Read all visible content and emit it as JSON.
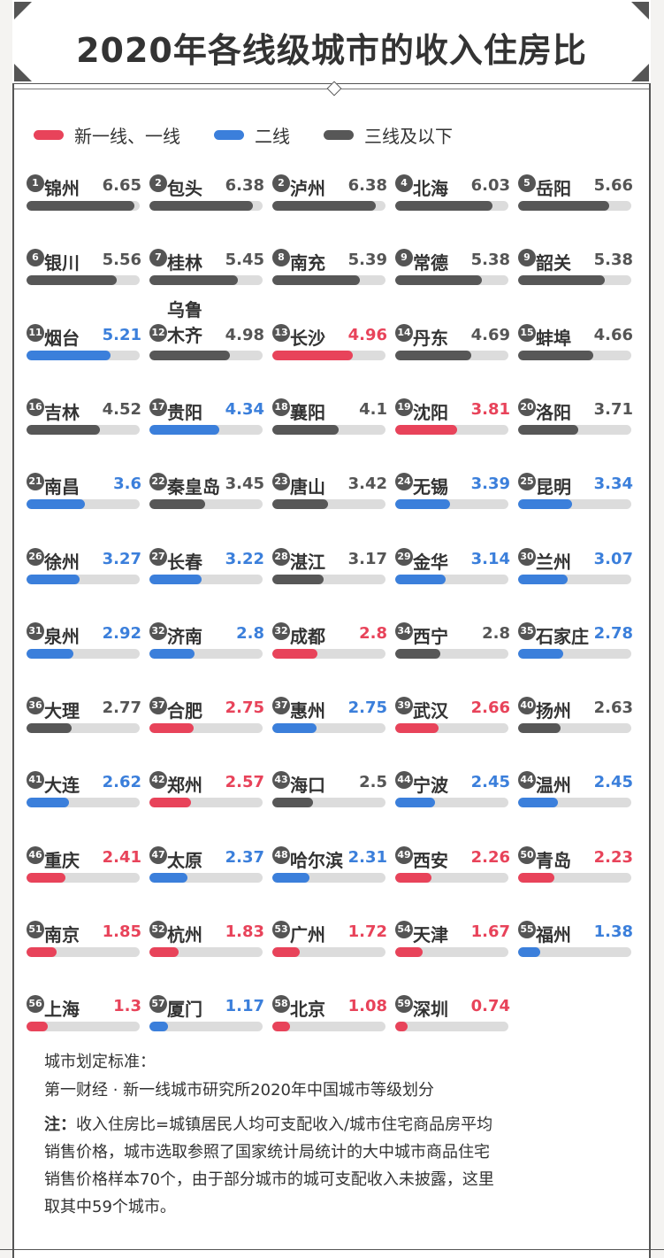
{
  "title": "2020年各线级城市的收入住房比",
  "colors": {
    "tier1": "#e8435a",
    "tier2": "#3b7fdb",
    "tier3": "#575757",
    "track": "#dcdcdc"
  },
  "legend": [
    {
      "label": "新一线、一线",
      "tier": "tier1"
    },
    {
      "label": "二线",
      "tier": "tier2"
    },
    {
      "label": "三线及以下",
      "tier": "tier3"
    }
  ],
  "chart_data": {
    "type": "bar",
    "title": "2020年各线级城市的收入住房比",
    "xlim": [
      0,
      7
    ],
    "items": [
      {
        "rank": "1",
        "city": "锦州",
        "value": 6.65,
        "label": "6.65",
        "tier": "tier3"
      },
      {
        "rank": "2",
        "city": "包头",
        "value": 6.38,
        "label": "6.38",
        "tier": "tier3"
      },
      {
        "rank": "2",
        "city": "泸州",
        "value": 6.38,
        "label": "6.38",
        "tier": "tier3"
      },
      {
        "rank": "4",
        "city": "北海",
        "value": 6.03,
        "label": "6.03",
        "tier": "tier3"
      },
      {
        "rank": "5",
        "city": "岳阳",
        "value": 5.66,
        "label": "5.66",
        "tier": "tier3"
      },
      {
        "rank": "6",
        "city": "银川",
        "value": 5.56,
        "label": "5.56",
        "tier": "tier3"
      },
      {
        "rank": "7",
        "city": "桂林",
        "value": 5.45,
        "label": "5.45",
        "tier": "tier3"
      },
      {
        "rank": "8",
        "city": "南充",
        "value": 5.39,
        "label": "5.39",
        "tier": "tier3"
      },
      {
        "rank": "9",
        "city": "常德",
        "value": 5.38,
        "label": "5.38",
        "tier": "tier3"
      },
      {
        "rank": "9",
        "city": "韶关",
        "value": 5.38,
        "label": "5.38",
        "tier": "tier3"
      },
      {
        "rank": "11",
        "city": "烟台",
        "value": 5.21,
        "label": "5.21",
        "tier": "tier2"
      },
      {
        "rank": "12",
        "city": "乌鲁木齐",
        "value": 4.98,
        "label": "4.98",
        "tier": "tier3",
        "two_line": true
      },
      {
        "rank": "13",
        "city": "长沙",
        "value": 4.96,
        "label": "4.96",
        "tier": "tier1"
      },
      {
        "rank": "14",
        "city": "丹东",
        "value": 4.69,
        "label": "4.69",
        "tier": "tier3"
      },
      {
        "rank": "15",
        "city": "蚌埠",
        "value": 4.66,
        "label": "4.66",
        "tier": "tier3"
      },
      {
        "rank": "16",
        "city": "吉林",
        "value": 4.52,
        "label": "4.52",
        "tier": "tier3"
      },
      {
        "rank": "17",
        "city": "贵阳",
        "value": 4.34,
        "label": "4.34",
        "tier": "tier2"
      },
      {
        "rank": "18",
        "city": "襄阳",
        "value": 4.1,
        "label": "4.1",
        "tier": "tier3"
      },
      {
        "rank": "19",
        "city": "沈阳",
        "value": 3.81,
        "label": "3.81",
        "tier": "tier1"
      },
      {
        "rank": "20",
        "city": "洛阳",
        "value": 3.71,
        "label": "3.71",
        "tier": "tier3"
      },
      {
        "rank": "21",
        "city": "南昌",
        "value": 3.6,
        "label": "3.6",
        "tier": "tier2"
      },
      {
        "rank": "22",
        "city": "秦皇岛",
        "value": 3.45,
        "label": "3.45",
        "tier": "tier3"
      },
      {
        "rank": "23",
        "city": "唐山",
        "value": 3.42,
        "label": "3.42",
        "tier": "tier3"
      },
      {
        "rank": "24",
        "city": "无锡",
        "value": 3.39,
        "label": "3.39",
        "tier": "tier2"
      },
      {
        "rank": "25",
        "city": "昆明",
        "value": 3.34,
        "label": "3.34",
        "tier": "tier2"
      },
      {
        "rank": "26",
        "city": "徐州",
        "value": 3.27,
        "label": "3.27",
        "tier": "tier2"
      },
      {
        "rank": "27",
        "city": "长春",
        "value": 3.22,
        "label": "3.22",
        "tier": "tier2"
      },
      {
        "rank": "28",
        "city": "湛江",
        "value": 3.17,
        "label": "3.17",
        "tier": "tier3"
      },
      {
        "rank": "29",
        "city": "金华",
        "value": 3.14,
        "label": "3.14",
        "tier": "tier2"
      },
      {
        "rank": "30",
        "city": "兰州",
        "value": 3.07,
        "label": "3.07",
        "tier": "tier2"
      },
      {
        "rank": "31",
        "city": "泉州",
        "value": 2.92,
        "label": "2.92",
        "tier": "tier2"
      },
      {
        "rank": "32",
        "city": "济南",
        "value": 2.8,
        "label": "2.8",
        "tier": "tier2"
      },
      {
        "rank": "32",
        "city": "成都",
        "value": 2.8,
        "label": "2.8",
        "tier": "tier1"
      },
      {
        "rank": "34",
        "city": "西宁",
        "value": 2.8,
        "label": "2.8",
        "tier": "tier3"
      },
      {
        "rank": "35",
        "city": "石家庄",
        "value": 2.78,
        "label": "2.78",
        "tier": "tier2"
      },
      {
        "rank": "36",
        "city": "大理",
        "value": 2.77,
        "label": "2.77",
        "tier": "tier3"
      },
      {
        "rank": "37",
        "city": "合肥",
        "value": 2.75,
        "label": "2.75",
        "tier": "tier1"
      },
      {
        "rank": "37",
        "city": "惠州",
        "value": 2.75,
        "label": "2.75",
        "tier": "tier2"
      },
      {
        "rank": "39",
        "city": "武汉",
        "value": 2.66,
        "label": "2.66",
        "tier": "tier1"
      },
      {
        "rank": "40",
        "city": "扬州",
        "value": 2.63,
        "label": "2.63",
        "tier": "tier3"
      },
      {
        "rank": "41",
        "city": "大连",
        "value": 2.62,
        "label": "2.62",
        "tier": "tier2"
      },
      {
        "rank": "42",
        "city": "郑州",
        "value": 2.57,
        "label": "2.57",
        "tier": "tier1"
      },
      {
        "rank": "43",
        "city": "海口",
        "value": 2.5,
        "label": "2.5",
        "tier": "tier3"
      },
      {
        "rank": "44",
        "city": "宁波",
        "value": 2.45,
        "label": "2.45",
        "tier": "tier2"
      },
      {
        "rank": "44",
        "city": "温州",
        "value": 2.45,
        "label": "2.45",
        "tier": "tier2"
      },
      {
        "rank": "46",
        "city": "重庆",
        "value": 2.41,
        "label": "2.41",
        "tier": "tier1"
      },
      {
        "rank": "47",
        "city": "太原",
        "value": 2.37,
        "label": "2.37",
        "tier": "tier2"
      },
      {
        "rank": "48",
        "city": "哈尔滨",
        "value": 2.31,
        "label": "2.31",
        "tier": "tier2"
      },
      {
        "rank": "49",
        "city": "西安",
        "value": 2.26,
        "label": "2.26",
        "tier": "tier1"
      },
      {
        "rank": "50",
        "city": "青岛",
        "value": 2.23,
        "label": "2.23",
        "tier": "tier1"
      },
      {
        "rank": "51",
        "city": "南京",
        "value": 1.85,
        "label": "1.85",
        "tier": "tier1"
      },
      {
        "rank": "52",
        "city": "杭州",
        "value": 1.83,
        "label": "1.83",
        "tier": "tier1"
      },
      {
        "rank": "53",
        "city": "广州",
        "value": 1.72,
        "label": "1.72",
        "tier": "tier1"
      },
      {
        "rank": "54",
        "city": "天津",
        "value": 1.67,
        "label": "1.67",
        "tier": "tier1"
      },
      {
        "rank": "55",
        "city": "福州",
        "value": 1.38,
        "label": "1.38",
        "tier": "tier2"
      },
      {
        "rank": "56",
        "city": "上海",
        "value": 1.3,
        "label": "1.3",
        "tier": "tier1"
      },
      {
        "rank": "57",
        "city": "厦门",
        "value": 1.17,
        "label": "1.17",
        "tier": "tier2"
      },
      {
        "rank": "58",
        "city": "北京",
        "value": 1.08,
        "label": "1.08",
        "tier": "tier1"
      },
      {
        "rank": "59",
        "city": "深圳",
        "value": 0.74,
        "label": "0.74",
        "tier": "tier1"
      }
    ]
  },
  "notes": {
    "criteria_heading": "城市划定标准：",
    "criteria_source": "第一财经 · 新一线城市研究所2020年中国城市等级划分",
    "note_prefix": "注：",
    "note_line1": "收入住房比=城镇居民人均可支配收入/城市住宅商品房平均",
    "note_line2": "销售价格，城市选取参照了国家统计局统计的大中城市商品住宅",
    "note_line3": "销售价格样本70个，由于部分城市的城可支配收入未披露，这里",
    "note_line4": "取其中59个城市。"
  }
}
